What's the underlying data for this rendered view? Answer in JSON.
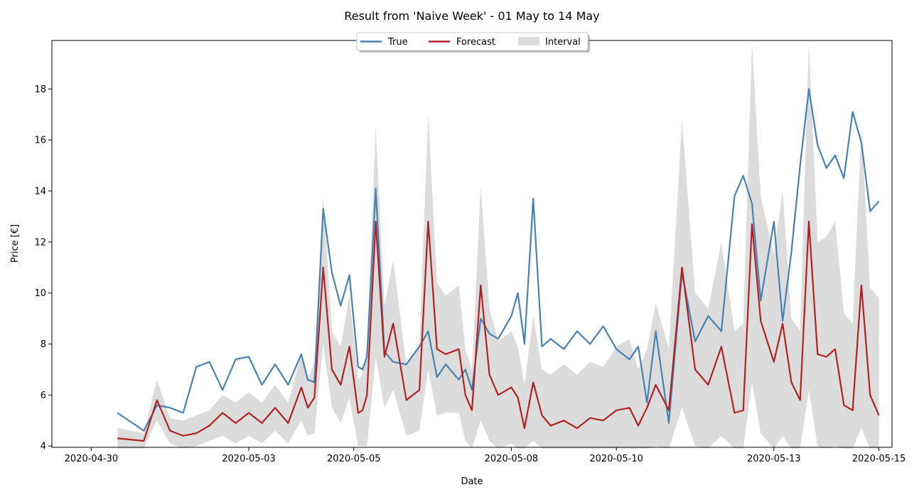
{
  "chart_data": {
    "type": "line",
    "title": "Result from 'Naive Week' - 01 May to 14 May",
    "xlabel": "Date",
    "ylabel": "Price [€]",
    "xlim": [
      "2020-04-29T06:00",
      "2020-05-15T06:00"
    ],
    "ylim": [
      3.95,
      19.9
    ],
    "x_ticks": [
      "2020-04-30",
      "2020-05-03",
      "2020-05-05",
      "2020-05-08",
      "2020-05-10",
      "2020-05-13",
      "2020-05-15"
    ],
    "y_ticks": [
      4,
      6,
      8,
      10,
      12,
      14,
      16,
      18
    ],
    "grid": false,
    "legend": {
      "placement": "top-center",
      "entries": [
        "True",
        "Forecast",
        "Interval"
      ]
    },
    "colors": {
      "true": "#4682b4",
      "forecast": "#b22222",
      "interval": "#dcdcdc"
    },
    "series": [
      {
        "name": "True",
        "x": [
          "2020-04-30T12:00",
          "2020-05-01T00:00",
          "2020-05-01T06:00",
          "2020-05-01T12:00",
          "2020-05-01T18:00",
          "2020-05-02T00:00",
          "2020-05-02T06:00",
          "2020-05-02T12:00",
          "2020-05-02T18:00",
          "2020-05-03T00:00",
          "2020-05-03T06:00",
          "2020-05-03T12:00",
          "2020-05-03T18:00",
          "2020-05-04T00:00",
          "2020-05-04T03:00",
          "2020-05-04T06:00",
          "2020-05-04T10:00",
          "2020-05-04T14:00",
          "2020-05-04T18:00",
          "2020-05-04T22:00",
          "2020-05-05T02:00",
          "2020-05-05T04:00",
          "2020-05-05T06:00",
          "2020-05-05T10:00",
          "2020-05-05T14:00",
          "2020-05-05T18:00",
          "2020-05-06T00:00",
          "2020-05-06T06:00",
          "2020-05-06T10:00",
          "2020-05-06T14:00",
          "2020-05-06T18:00",
          "2020-05-07T00:00",
          "2020-05-07T03:00",
          "2020-05-07T06:00",
          "2020-05-07T10:00",
          "2020-05-07T14:00",
          "2020-05-07T18:00",
          "2020-05-08T00:00",
          "2020-05-08T03:00",
          "2020-05-08T06:00",
          "2020-05-08T10:00",
          "2020-05-08T14:00",
          "2020-05-08T18:00",
          "2020-05-09T00:00",
          "2020-05-09T06:00",
          "2020-05-09T12:00",
          "2020-05-09T18:00",
          "2020-05-10T00:00",
          "2020-05-10T06:00",
          "2020-05-10T10:00",
          "2020-05-10T14:00",
          "2020-05-10T18:00",
          "2020-05-11T00:00",
          "2020-05-11T06:00",
          "2020-05-11T12:00",
          "2020-05-11T18:00",
          "2020-05-12T00:00",
          "2020-05-12T06:00",
          "2020-05-12T10:00",
          "2020-05-12T14:00",
          "2020-05-12T18:00",
          "2020-05-13T00:00",
          "2020-05-13T04:00",
          "2020-05-13T08:00",
          "2020-05-13T12:00",
          "2020-05-13T16:00",
          "2020-05-13T20:00",
          "2020-05-14T00:00",
          "2020-05-14T04:00",
          "2020-05-14T08:00",
          "2020-05-14T12:00",
          "2020-05-14T16:00",
          "2020-05-14T20:00",
          "2020-05-15T00:00"
        ],
        "y": [
          5.3,
          4.6,
          5.6,
          5.5,
          5.3,
          7.1,
          7.3,
          6.2,
          7.4,
          7.5,
          6.4,
          7.2,
          6.4,
          7.6,
          6.6,
          6.5,
          13.3,
          10.8,
          9.5,
          10.7,
          7.1,
          7.0,
          7.5,
          14.1,
          7.7,
          7.3,
          7.2,
          7.9,
          8.5,
          6.7,
          7.2,
          6.6,
          7.0,
          6.2,
          9.0,
          8.4,
          8.2,
          9.1,
          10.0,
          8.0,
          13.7,
          7.9,
          8.2,
          7.8,
          8.5,
          8.0,
          8.7,
          7.8,
          7.4,
          7.9,
          5.7,
          8.5,
          4.9,
          10.8,
          8.1,
          9.1,
          8.5,
          13.8,
          14.6,
          13.5,
          9.7,
          12.8,
          8.9,
          11.6,
          15.0,
          18.0,
          15.8,
          14.9,
          15.4,
          14.5,
          17.1,
          15.9,
          13.2,
          13.6
        ]
      },
      {
        "name": "Forecast",
        "x": [
          "2020-04-30T12:00",
          "2020-05-01T00:00",
          "2020-05-01T06:00",
          "2020-05-01T12:00",
          "2020-05-01T18:00",
          "2020-05-02T00:00",
          "2020-05-02T06:00",
          "2020-05-02T12:00",
          "2020-05-02T18:00",
          "2020-05-03T00:00",
          "2020-05-03T06:00",
          "2020-05-03T12:00",
          "2020-05-03T18:00",
          "2020-05-04T00:00",
          "2020-05-04T03:00",
          "2020-05-04T06:00",
          "2020-05-04T10:00",
          "2020-05-04T14:00",
          "2020-05-04T18:00",
          "2020-05-04T22:00",
          "2020-05-05T02:00",
          "2020-05-05T04:00",
          "2020-05-05T06:00",
          "2020-05-05T10:00",
          "2020-05-05T14:00",
          "2020-05-05T18:00",
          "2020-05-06T00:00",
          "2020-05-06T06:00",
          "2020-05-06T10:00",
          "2020-05-06T14:00",
          "2020-05-06T18:00",
          "2020-05-07T00:00",
          "2020-05-07T03:00",
          "2020-05-07T06:00",
          "2020-05-07T10:00",
          "2020-05-07T14:00",
          "2020-05-07T18:00",
          "2020-05-08T00:00",
          "2020-05-08T03:00",
          "2020-05-08T06:00",
          "2020-05-08T10:00",
          "2020-05-08T14:00",
          "2020-05-08T18:00",
          "2020-05-09T00:00",
          "2020-05-09T06:00",
          "2020-05-09T12:00",
          "2020-05-09T18:00",
          "2020-05-10T00:00",
          "2020-05-10T06:00",
          "2020-05-10T10:00",
          "2020-05-10T14:00",
          "2020-05-10T18:00",
          "2020-05-11T00:00",
          "2020-05-11T06:00",
          "2020-05-11T12:00",
          "2020-05-11T18:00",
          "2020-05-12T00:00",
          "2020-05-12T06:00",
          "2020-05-12T10:00",
          "2020-05-12T14:00",
          "2020-05-12T18:00",
          "2020-05-13T00:00",
          "2020-05-13T04:00",
          "2020-05-13T08:00",
          "2020-05-13T12:00",
          "2020-05-13T16:00",
          "2020-05-13T20:00",
          "2020-05-14T00:00",
          "2020-05-14T04:00",
          "2020-05-14T08:00",
          "2020-05-14T12:00",
          "2020-05-14T16:00",
          "2020-05-14T20:00",
          "2020-05-15T00:00"
        ],
        "y": [
          4.3,
          4.2,
          5.8,
          4.6,
          4.4,
          4.5,
          4.8,
          5.3,
          4.9,
          5.3,
          4.9,
          5.5,
          4.9,
          6.3,
          5.5,
          5.9,
          11.0,
          7.0,
          6.4,
          7.9,
          5.3,
          5.4,
          6.0,
          12.8,
          7.5,
          8.8,
          5.8,
          6.2,
          12.8,
          7.8,
          7.6,
          7.8,
          6.0,
          5.4,
          10.3,
          6.8,
          6.0,
          6.3,
          5.9,
          4.7,
          6.5,
          5.2,
          4.8,
          5.0,
          4.7,
          5.1,
          5.0,
          5.4,
          5.5,
          4.8,
          5.5,
          6.4,
          5.4,
          11.0,
          7.0,
          6.4,
          7.9,
          5.3,
          5.4,
          12.7,
          8.9,
          7.3,
          8.8,
          6.5,
          5.8,
          12.8,
          7.6,
          7.5,
          7.8,
          5.6,
          5.4,
          10.3,
          6.0,
          5.2
        ]
      },
      {
        "name": "Interval",
        "x": [
          "2020-04-30T12:00",
          "2020-05-01T00:00",
          "2020-05-01T06:00",
          "2020-05-01T12:00",
          "2020-05-01T18:00",
          "2020-05-02T00:00",
          "2020-05-02T06:00",
          "2020-05-02T12:00",
          "2020-05-02T18:00",
          "2020-05-03T00:00",
          "2020-05-03T06:00",
          "2020-05-03T12:00",
          "2020-05-03T18:00",
          "2020-05-04T00:00",
          "2020-05-04T03:00",
          "2020-05-04T06:00",
          "2020-05-04T10:00",
          "2020-05-04T14:00",
          "2020-05-04T18:00",
          "2020-05-04T22:00",
          "2020-05-05T02:00",
          "2020-05-05T04:00",
          "2020-05-05T06:00",
          "2020-05-05T10:00",
          "2020-05-05T14:00",
          "2020-05-05T18:00",
          "2020-05-06T00:00",
          "2020-05-06T06:00",
          "2020-05-06T10:00",
          "2020-05-06T14:00",
          "2020-05-06T18:00",
          "2020-05-07T00:00",
          "2020-05-07T03:00",
          "2020-05-07T06:00",
          "2020-05-07T10:00",
          "2020-05-07T14:00",
          "2020-05-07T18:00",
          "2020-05-08T00:00",
          "2020-05-08T03:00",
          "2020-05-08T06:00",
          "2020-05-08T10:00",
          "2020-05-08T14:00",
          "2020-05-08T18:00",
          "2020-05-09T00:00",
          "2020-05-09T06:00",
          "2020-05-09T12:00",
          "2020-05-09T18:00",
          "2020-05-10T00:00",
          "2020-05-10T06:00",
          "2020-05-10T10:00",
          "2020-05-10T14:00",
          "2020-05-10T18:00",
          "2020-05-11T00:00",
          "2020-05-11T06:00",
          "2020-05-11T12:00",
          "2020-05-11T18:00",
          "2020-05-12T00:00",
          "2020-05-12T06:00",
          "2020-05-12T10:00",
          "2020-05-12T14:00",
          "2020-05-12T18:00",
          "2020-05-13T00:00",
          "2020-05-13T04:00",
          "2020-05-13T08:00",
          "2020-05-13T12:00",
          "2020-05-13T16:00",
          "2020-05-13T20:00",
          "2020-05-14T00:00",
          "2020-05-14T04:00",
          "2020-05-14T08:00",
          "2020-05-14T12:00",
          "2020-05-14T16:00",
          "2020-05-14T20:00",
          "2020-05-15T00:00"
        ],
        "lower": [
          3.9,
          3.9,
          5.0,
          4.1,
          3.9,
          4.0,
          4.2,
          4.4,
          4.1,
          4.4,
          4.1,
          4.6,
          4.1,
          5.0,
          4.4,
          4.5,
          8.0,
          5.5,
          4.9,
          5.9,
          4.0,
          4.0,
          4.0,
          7.5,
          5.5,
          6.2,
          4.4,
          4.6,
          7.0,
          5.2,
          5.3,
          5.3,
          4.2,
          3.9,
          5.0,
          4.2,
          3.9,
          4.1,
          3.9,
          3.9,
          4.2,
          3.9,
          3.9,
          3.9,
          3.9,
          3.9,
          3.9,
          3.9,
          3.9,
          3.9,
          3.9,
          4.0,
          3.9,
          5.5,
          4.0,
          3.9,
          4.4,
          3.9,
          3.9,
          6.5,
          4.5,
          3.9,
          4.4,
          3.9,
          3.9,
          6.2,
          4.0,
          3.9,
          4.0,
          3.9,
          3.9,
          4.7,
          3.9,
          3.9
        ],
        "upper": [
          4.7,
          4.5,
          6.6,
          5.1,
          5.0,
          5.2,
          5.4,
          6.0,
          5.7,
          6.1,
          5.7,
          6.4,
          5.7,
          7.6,
          6.6,
          7.3,
          13.8,
          8.5,
          7.9,
          9.9,
          6.6,
          6.8,
          8.0,
          16.5,
          9.5,
          11.3,
          7.2,
          8.0,
          17.0,
          10.4,
          9.9,
          10.3,
          7.8,
          7.0,
          14.2,
          9.4,
          8.1,
          8.5,
          7.9,
          6.4,
          9.1,
          7.0,
          6.8,
          7.2,
          6.8,
          7.3,
          7.1,
          7.9,
          8.2,
          7.0,
          7.8,
          9.6,
          7.8,
          16.8,
          10.0,
          9.4,
          12.0,
          8.5,
          8.8,
          19.8,
          13.8,
          11.5,
          14.0,
          9.0,
          8.5,
          19.8,
          12.0,
          12.2,
          12.8,
          9.2,
          8.8,
          16.5,
          10.2,
          9.8
        ]
      }
    ]
  }
}
